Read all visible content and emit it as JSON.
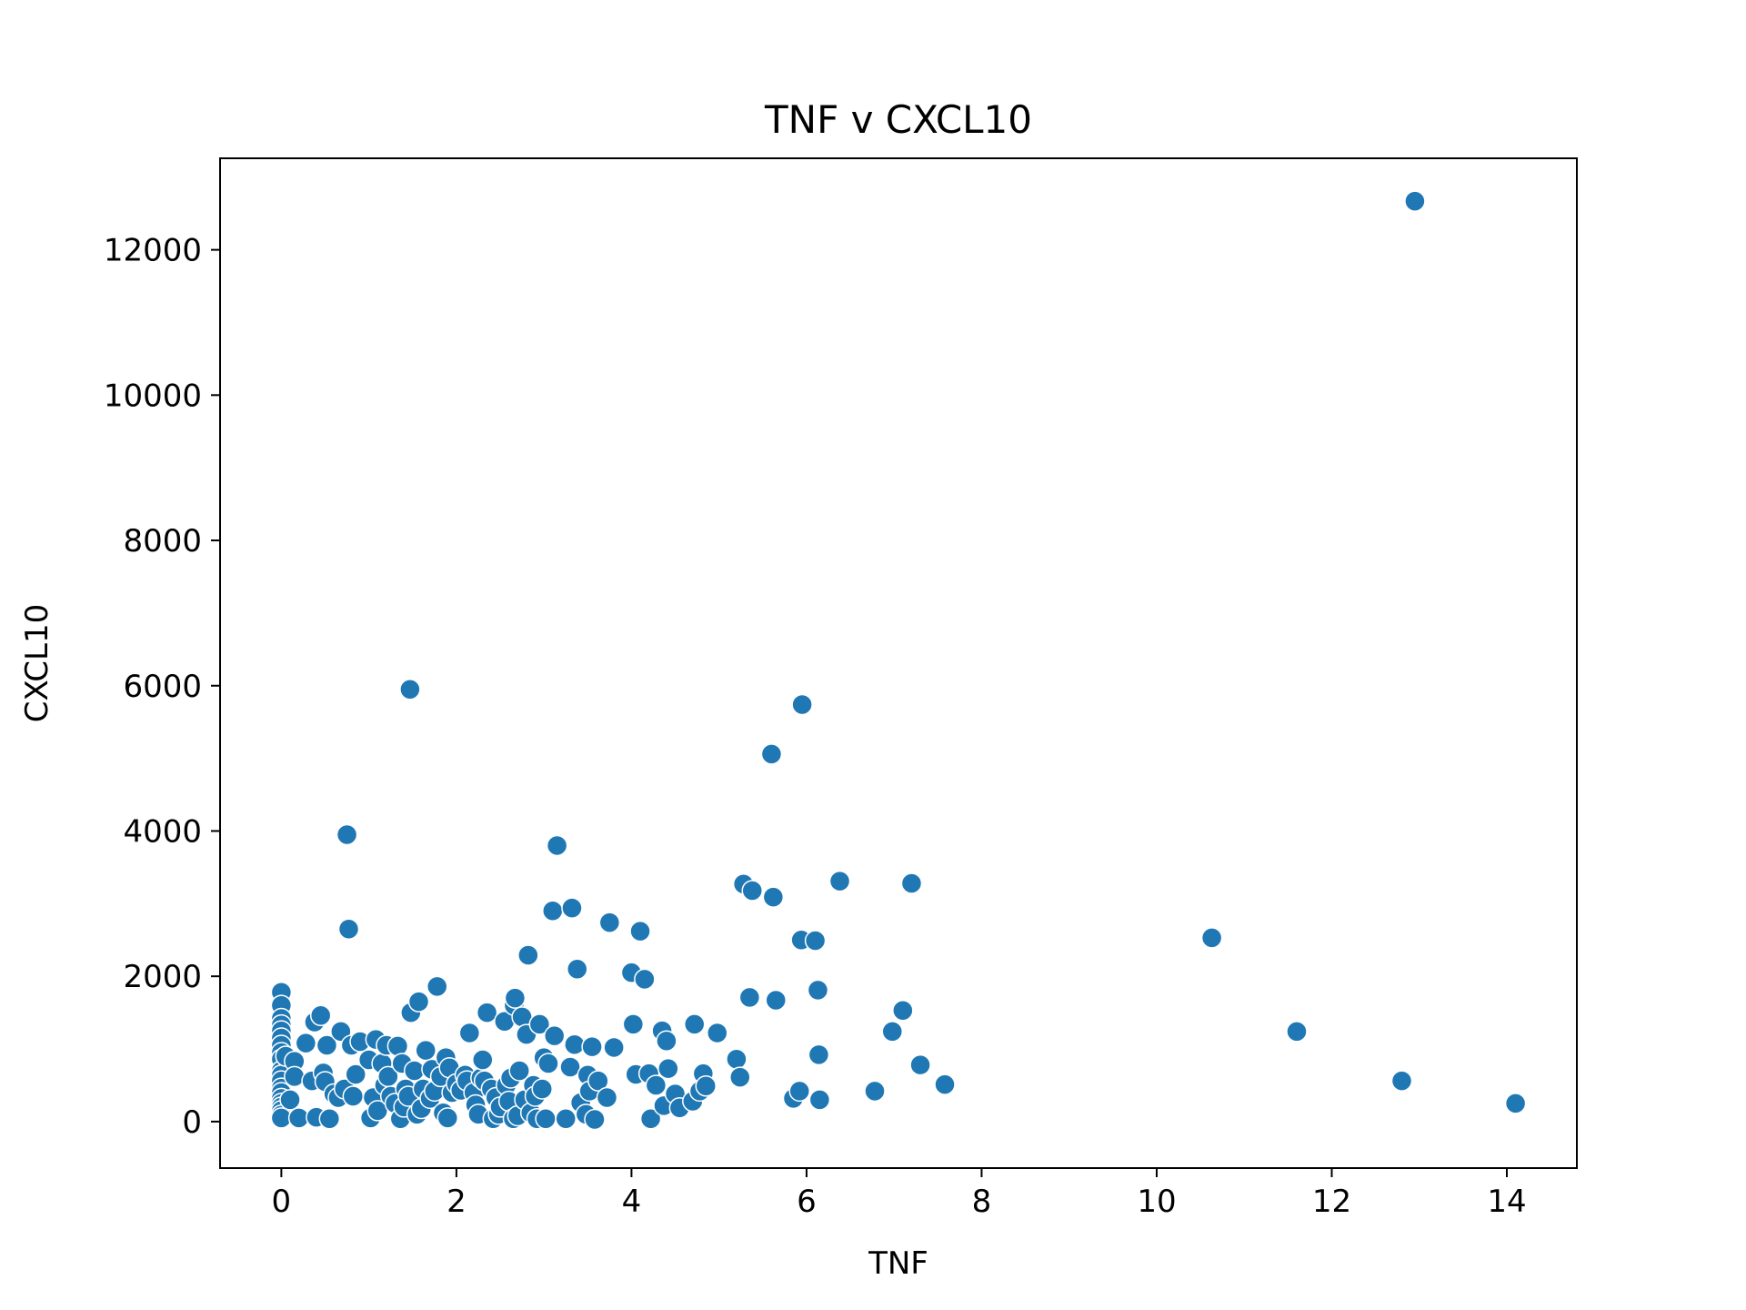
{
  "chart_data": {
    "type": "scatter",
    "title": "TNF v CXCL10",
    "xlabel": "TNF",
    "ylabel": "CXCL10",
    "xlim": [
      -0.7,
      14.8
    ],
    "ylim": [
      -640,
      13260
    ],
    "xticks": [
      0,
      2,
      4,
      6,
      8,
      10,
      12,
      14
    ],
    "yticks": [
      0,
      2000,
      4000,
      6000,
      8000,
      10000,
      12000
    ],
    "grid": false,
    "marker_color": "#1f77b4",
    "marker_edge": "#ffffff",
    "series": [
      {
        "points": [
          [
            0,
            1780
          ],
          [
            0,
            1600
          ],
          [
            0,
            1420
          ],
          [
            0,
            1330
          ],
          [
            0,
            1250
          ],
          [
            0,
            1150
          ],
          [
            0,
            1050
          ],
          [
            0,
            950
          ],
          [
            0,
            860
          ],
          [
            0,
            700
          ],
          [
            0,
            640
          ],
          [
            0,
            560
          ],
          [
            0,
            460
          ],
          [
            0,
            400
          ],
          [
            0,
            320
          ],
          [
            0,
            250
          ],
          [
            0,
            200
          ],
          [
            0,
            150
          ],
          [
            0,
            90
          ],
          [
            0,
            50
          ],
          [
            0.05,
            900
          ],
          [
            0.1,
            300
          ],
          [
            0.15,
            830
          ],
          [
            0.15,
            620
          ],
          [
            0.2,
            50
          ],
          [
            0.28,
            1080
          ],
          [
            0.35,
            560
          ],
          [
            0.38,
            1370
          ],
          [
            0.4,
            60
          ],
          [
            0.45,
            1460
          ],
          [
            0.48,
            670
          ],
          [
            0.5,
            550
          ],
          [
            0.52,
            1050
          ],
          [
            0.55,
            40
          ],
          [
            0.6,
            380
          ],
          [
            0.65,
            330
          ],
          [
            0.68,
            1240
          ],
          [
            0.72,
            450
          ],
          [
            0.75,
            3950
          ],
          [
            0.77,
            2650
          ],
          [
            0.8,
            1050
          ],
          [
            0.82,
            350
          ],
          [
            0.85,
            650
          ],
          [
            0.9,
            1100
          ],
          [
            1.0,
            850
          ],
          [
            1.02,
            50
          ],
          [
            1.05,
            330
          ],
          [
            1.08,
            1130
          ],
          [
            1.1,
            150
          ],
          [
            1.15,
            800
          ],
          [
            1.18,
            500
          ],
          [
            1.2,
            1050
          ],
          [
            1.22,
            620
          ],
          [
            1.25,
            350
          ],
          [
            1.3,
            250
          ],
          [
            1.33,
            1040
          ],
          [
            1.36,
            40
          ],
          [
            1.38,
            800
          ],
          [
            1.4,
            200
          ],
          [
            1.42,
            450
          ],
          [
            1.45,
            350
          ],
          [
            1.47,
            5950
          ],
          [
            1.48,
            1500
          ],
          [
            1.52,
            700
          ],
          [
            1.55,
            100
          ],
          [
            1.57,
            1650
          ],
          [
            1.6,
            180
          ],
          [
            1.62,
            450
          ],
          [
            1.65,
            980
          ],
          [
            1.7,
            320
          ],
          [
            1.72,
            720
          ],
          [
            1.75,
            420
          ],
          [
            1.78,
            1860
          ],
          [
            1.82,
            620
          ],
          [
            1.85,
            120
          ],
          [
            1.88,
            880
          ],
          [
            1.9,
            50
          ],
          [
            1.92,
            740
          ],
          [
            1.95,
            400
          ],
          [
            2.0,
            520
          ],
          [
            2.05,
            430
          ],
          [
            2.1,
            640
          ],
          [
            2.12,
            560
          ],
          [
            2.15,
            1220
          ],
          [
            2.2,
            400
          ],
          [
            2.22,
            230
          ],
          [
            2.25,
            100
          ],
          [
            2.28,
            600
          ],
          [
            2.3,
            850
          ],
          [
            2.32,
            560
          ],
          [
            2.35,
            1500
          ],
          [
            2.4,
            450
          ],
          [
            2.42,
            40
          ],
          [
            2.45,
            330
          ],
          [
            2.48,
            100
          ],
          [
            2.5,
            200
          ],
          [
            2.55,
            1380
          ],
          [
            2.57,
            500
          ],
          [
            2.6,
            280
          ],
          [
            2.62,
            600
          ],
          [
            2.65,
            40
          ],
          [
            2.66,
            1600
          ],
          [
            2.67,
            1700
          ],
          [
            2.7,
            80
          ],
          [
            2.72,
            700
          ],
          [
            2.75,
            1440
          ],
          [
            2.78,
            300
          ],
          [
            2.8,
            1200
          ],
          [
            2.82,
            2290
          ],
          [
            2.85,
            120
          ],
          [
            2.88,
            500
          ],
          [
            2.9,
            350
          ],
          [
            2.92,
            40
          ],
          [
            2.95,
            1340
          ],
          [
            2.98,
            450
          ],
          [
            3.0,
            880
          ],
          [
            3.02,
            40
          ],
          [
            3.05,
            800
          ],
          [
            3.1,
            2900
          ],
          [
            3.12,
            1180
          ],
          [
            3.15,
            3800
          ],
          [
            3.25,
            40
          ],
          [
            3.3,
            750
          ],
          [
            3.32,
            2940
          ],
          [
            3.35,
            1060
          ],
          [
            3.38,
            2100
          ],
          [
            3.42,
            260
          ],
          [
            3.48,
            100
          ],
          [
            3.5,
            640
          ],
          [
            3.52,
            420
          ],
          [
            3.55,
            1030
          ],
          [
            3.58,
            30
          ],
          [
            3.62,
            560
          ],
          [
            3.72,
            330
          ],
          [
            3.75,
            2740
          ],
          [
            3.8,
            1020
          ],
          [
            4.0,
            2050
          ],
          [
            4.02,
            1340
          ],
          [
            4.05,
            650
          ],
          [
            4.1,
            2620
          ],
          [
            4.15,
            1960
          ],
          [
            4.2,
            660
          ],
          [
            4.22,
            40
          ],
          [
            4.28,
            500
          ],
          [
            4.35,
            1250
          ],
          [
            4.37,
            220
          ],
          [
            4.4,
            1110
          ],
          [
            4.42,
            730
          ],
          [
            4.5,
            380
          ],
          [
            4.55,
            190
          ],
          [
            4.7,
            280
          ],
          [
            4.72,
            1340
          ],
          [
            4.78,
            420
          ],
          [
            4.82,
            660
          ],
          [
            4.85,
            490
          ],
          [
            4.98,
            1220
          ],
          [
            5.2,
            860
          ],
          [
            5.24,
            610
          ],
          [
            5.28,
            3270
          ],
          [
            5.35,
            1710
          ],
          [
            5.38,
            3180
          ],
          [
            5.6,
            5060
          ],
          [
            5.62,
            3090
          ],
          [
            5.65,
            1670
          ],
          [
            5.85,
            320
          ],
          [
            5.92,
            420
          ],
          [
            5.94,
            2500
          ],
          [
            5.95,
            5740
          ],
          [
            6.1,
            2490
          ],
          [
            6.13,
            1810
          ],
          [
            6.14,
            920
          ],
          [
            6.15,
            300
          ],
          [
            6.38,
            3310
          ],
          [
            6.78,
            420
          ],
          [
            6.98,
            1240
          ],
          [
            7.1,
            1530
          ],
          [
            7.2,
            3280
          ],
          [
            7.3,
            780
          ],
          [
            7.58,
            510
          ],
          [
            10.63,
            2530
          ],
          [
            11.6,
            1240
          ],
          [
            12.8,
            560
          ],
          [
            12.95,
            12670
          ],
          [
            14.1,
            250
          ]
        ]
      }
    ]
  }
}
